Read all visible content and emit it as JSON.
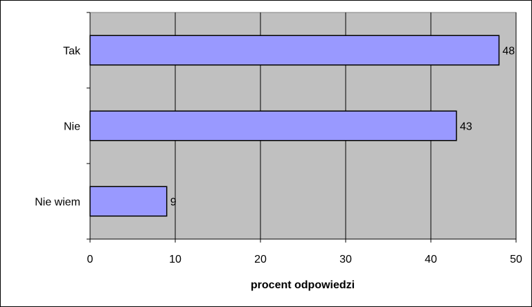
{
  "chart_data": {
    "type": "bar",
    "orientation": "horizontal",
    "categories": [
      "Tak",
      "Nie",
      "Nie wiem"
    ],
    "values": [
      48,
      43,
      9
    ],
    "xlabel": "procent odpowiedzi",
    "ylabel": "",
    "xlim": [
      0,
      50
    ],
    "x_ticks": [
      0,
      10,
      20,
      30,
      40,
      50
    ],
    "grid": "vertical",
    "legend": "none",
    "data_labels": true,
    "colors": {
      "bar_fill": "#9999FF",
      "bar_stroke": "#000000",
      "plot_background": "#C0C0C0",
      "gridline": "#000000",
      "page_background": "#FFFFFF"
    }
  }
}
